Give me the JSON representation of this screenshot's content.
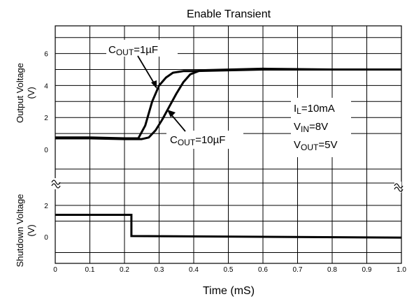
{
  "chart_data": {
    "type": "line",
    "title": "Enable Transient",
    "xlabel": "Time (mS)",
    "xlim": [
      0,
      1.0
    ],
    "x_ticks": [
      "0",
      "0.1",
      "0.2",
      "0.3",
      "0.4",
      "0.5",
      "0.6",
      "0.7",
      "0.8",
      "0.9",
      "1.0"
    ],
    "grid": true,
    "panels": {
      "top": {
        "ylabel_line1": "Output Voltage",
        "ylabel_line2": "(V)",
        "ylim": [
          0,
          7
        ],
        "y_ticks": [
          "0",
          "2",
          "4",
          "6"
        ],
        "series": [
          {
            "name": "COUT=1µF",
            "label_main": "C",
            "label_sub": "OUT",
            "label_rest": "=1µF",
            "x": [
              0,
              0.1,
              0.2,
              0.24,
              0.26,
              0.28,
              0.3,
              0.32,
              0.34,
              0.37,
              0.4,
              0.6,
              0.8,
              1.0
            ],
            "y": [
              0.75,
              0.75,
              0.7,
              0.7,
              1.5,
              3.0,
              4.0,
              4.5,
              4.8,
              4.9,
              4.9,
              5.0,
              5.0,
              5.0
            ]
          },
          {
            "name": "COUT=10µF",
            "label_main": "C",
            "label_sub": "OUT",
            "label_rest": "=10µF",
            "x": [
              0,
              0.1,
              0.2,
              0.25,
              0.27,
              0.29,
              0.31,
              0.33,
              0.35,
              0.37,
              0.39,
              0.42,
              0.6,
              0.8,
              1.0
            ],
            "y": [
              0.7,
              0.7,
              0.65,
              0.65,
              0.75,
              1.2,
              1.9,
              2.7,
              3.5,
              4.2,
              4.7,
              4.95,
              5.05,
              5.0,
              5.0
            ]
          }
        ],
        "conditions": [
          {
            "main": "I",
            "sub": "L",
            "rest": "=10mA"
          },
          {
            "main": "V",
            "sub": "IN",
            "rest": "=8V"
          },
          {
            "main": "V",
            "sub": "OUT",
            "rest": "=5V"
          }
        ]
      },
      "bottom": {
        "ylabel_line1": "Shutdown Voltage",
        "ylabel_line2": "(V)",
        "ylim": [
          -1.2,
          3.2
        ],
        "y_ticks": [
          "0",
          "2"
        ],
        "series": [
          {
            "name": "Shutdown",
            "x": [
              0,
              0.22,
              0.22,
              1.0
            ],
            "y": [
              1.4,
              1.4,
              0.05,
              -0.05
            ]
          }
        ]
      }
    }
  }
}
